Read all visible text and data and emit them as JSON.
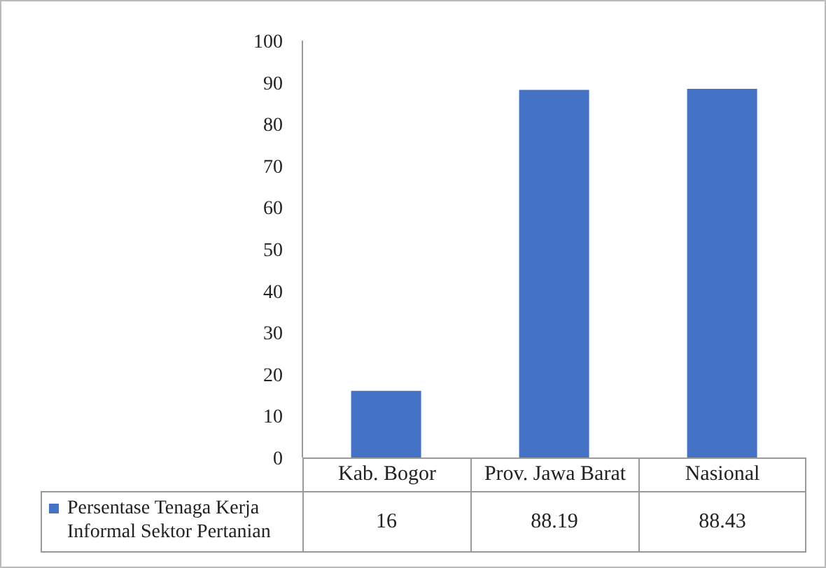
{
  "chart_data": {
    "type": "bar",
    "categories": [
      "Kab. Bogor",
      "Prov. Jawa Barat",
      "Nasional"
    ],
    "series": [
      {
        "name": "Persentase Tenaga Kerja Informal Sektor Pertanian",
        "color": "#4472c4",
        "values": [
          16,
          88.19,
          88.43
        ]
      }
    ],
    "ylim": [
      0,
      100
    ],
    "yticks": [
      0,
      10,
      20,
      30,
      40,
      50,
      60,
      70,
      80,
      90,
      100
    ],
    "grid": false,
    "legend": "bottom left",
    "data_labels": true
  }
}
